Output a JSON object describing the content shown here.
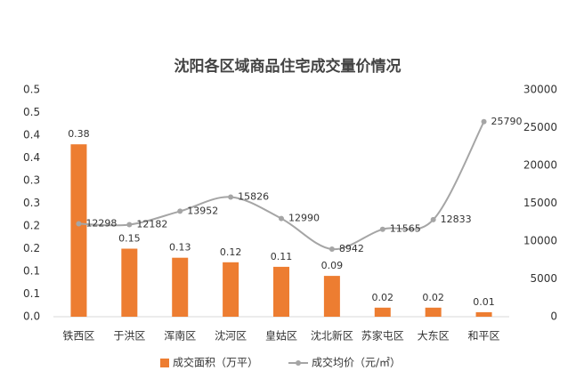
{
  "chart_data": {
    "type": "bar-line",
    "title": "沈阳各区域商品住宅成交量价情况",
    "categories": [
      "铁西区",
      "于洪区",
      "浑南区",
      "沈河区",
      "皇姑区",
      "沈北新区",
      "苏家屯区",
      "大东区",
      "和平区"
    ],
    "series": [
      {
        "name": "成交面积（万平）",
        "type": "bar",
        "color": "#ed7d31",
        "values": [
          0.38,
          0.15,
          0.13,
          0.12,
          0.11,
          0.09,
          0.02,
          0.02,
          0.01
        ]
      },
      {
        "name": "成交均价（元/㎡）",
        "type": "line",
        "axis": "y2",
        "color": "#a5a5a5",
        "values": [
          12298,
          12182,
          13952,
          15826,
          12990,
          8942,
          11565,
          12833,
          25790
        ]
      }
    ],
    "ylim": [
      0,
      0.5
    ],
    "yticks": [
      {
        "value": 0,
        "label": "0.0"
      },
      {
        "value": 0.05,
        "label": "0.1"
      },
      {
        "value": 0.1,
        "label": "0.1"
      },
      {
        "value": 0.15,
        "label": "0.2"
      },
      {
        "value": 0.2,
        "label": "0.2"
      },
      {
        "value": 0.25,
        "label": "0.3"
      },
      {
        "value": 0.3,
        "label": "0.3"
      },
      {
        "value": 0.35,
        "label": "0.4"
      },
      {
        "value": 0.4,
        "label": "0.4"
      },
      {
        "value": 0.45,
        "label": "0.5"
      },
      {
        "value": 0.5,
        "label": "0.5"
      }
    ],
    "y2lim": [
      0,
      30000
    ],
    "y2ticks": [
      0,
      5000,
      10000,
      15000,
      20000,
      25000,
      30000
    ],
    "legend": "bottom"
  }
}
